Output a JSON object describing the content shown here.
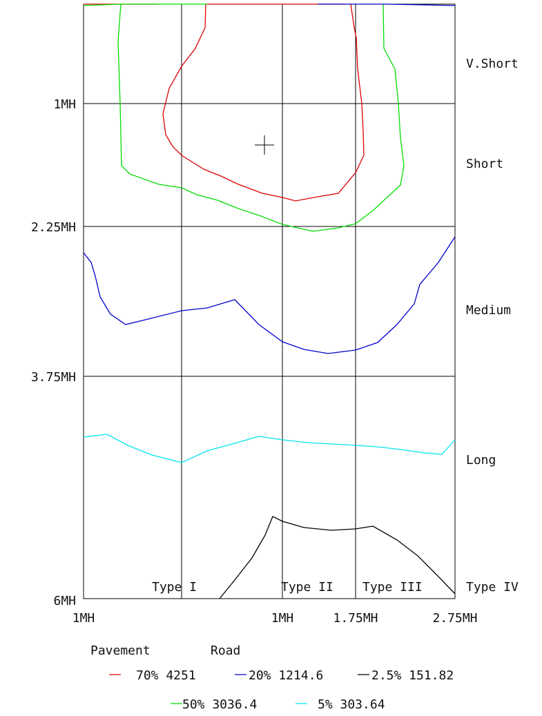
{
  "chart_data": {
    "type": "line",
    "description_free": true,
    "y_axis": {
      "tick_labels": [
        "1MH",
        "2.25MH",
        "3.75MH",
        "6MH"
      ]
    },
    "x_axis": {
      "tick_labels": [
        "1MH",
        "1MH",
        "1.75MH",
        "2.75MH"
      ]
    },
    "row_labels": [
      "V.Short",
      "Short",
      "Medium",
      "Long"
    ],
    "column_labels": [
      "Type I",
      "Type II",
      "Type III",
      "Type IV"
    ],
    "legend": {
      "titles": [
        "Pavement",
        "Road"
      ],
      "entries": [
        {
          "label": "70% 4251",
          "color": "#dd0000"
        },
        {
          "label": "20% 1214.6",
          "color": "#0000cc"
        },
        {
          "label": "2.5% 151.82",
          "color": "#000000"
        },
        {
          "label": "50% 3036.4",
          "color": "#00dd00"
        },
        {
          "label": "5% 303.64",
          "color": "#00e5ee"
        }
      ]
    },
    "series": [
      {
        "legend_index": 0,
        "color": "#dd0000"
      },
      {
        "legend_index": 1,
        "color": "#0000cc"
      },
      {
        "legend_index": 2,
        "color": "#000000"
      },
      {
        "legend_index": 3,
        "color": "#00dd00"
      },
      {
        "legend_index": 4,
        "color": "#00e5ee"
      }
    ]
  }
}
